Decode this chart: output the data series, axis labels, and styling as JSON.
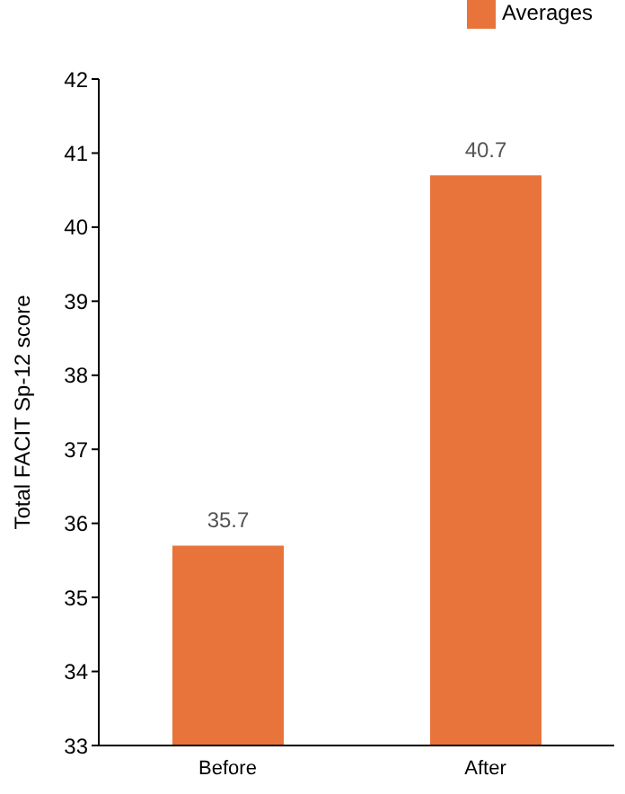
{
  "chart_data": {
    "type": "bar",
    "ylabel": "Total FACIT Sp-12 score",
    "categories": [
      "Before",
      "After"
    ],
    "series": [
      {
        "name": "Averages",
        "color": "#e8743b",
        "values": [
          35.7,
          40.7
        ]
      }
    ],
    "ylim": [
      33,
      42
    ],
    "yticks": [
      33,
      34,
      35,
      36,
      37,
      38,
      39,
      40,
      41,
      42
    ],
    "grid": false,
    "legend": "top right",
    "data_labels": true
  }
}
